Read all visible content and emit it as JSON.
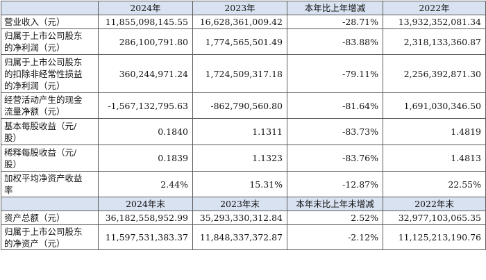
{
  "header1": [
    "",
    "2024年",
    "2023年",
    "本年比上年增减",
    "2022年"
  ],
  "rows1": [
    {
      "label": [
        "营业收入（元）"
      ],
      "values": [
        "11,855,098,145.55",
        "16,628,361,009.42",
        "-28.71%",
        "13,932,352,081.34"
      ]
    },
    {
      "label": [
        "归属于上市公司股东",
        "的净利润（元）"
      ],
      "values": [
        "286,100,791.80",
        "1,774,565,501.49",
        "-83.88%",
        "2,318,133,360.87"
      ]
    },
    {
      "label": [
        "归属于上市公司股东",
        "的扣除非经常性损益",
        "的净利润（元）"
      ],
      "values": [
        "360,244,971.24",
        "1,724,509,317.18",
        "-79.11%",
        "2,256,392,871.30"
      ]
    },
    {
      "label": [
        "经营活动产生的现金",
        "流量净额（元）"
      ],
      "values": [
        "-1,567,132,795.63",
        "-862,790,560.80",
        "-81.64%",
        "1,691,030,346.50"
      ]
    },
    {
      "label": [
        "基本每股收益（元/",
        "股）"
      ],
      "values": [
        "0.1840",
        "1.1311",
        "-83.73%",
        "1.4819"
      ]
    },
    {
      "label": [
        "稀释每股收益（元/",
        "股）"
      ],
      "values": [
        "0.1839",
        "1.1323",
        "-83.76%",
        "1.4813"
      ]
    },
    {
      "label": [
        "加权平均净资产收益",
        "率"
      ],
      "values": [
        "2.44%",
        "15.31%",
        "-12.87%",
        "22.55%"
      ]
    }
  ],
  "header2": [
    "",
    "2024年末",
    "2023年末",
    "本年末比上年末增减",
    "2022年末"
  ],
  "rows2": [
    {
      "label": [
        "资产总额（元）"
      ],
      "values": [
        "36,182,558,952.99",
        "35,293,330,312.84",
        "2.52%",
        "32,977,103,065.35"
      ]
    },
    {
      "label": [
        "归属于上市公司股东",
        "的净资产（元）"
      ],
      "values": [
        "11,597,531,383.37",
        "11,848,337,372.87",
        "-2.12%",
        "11,125,213,190.76"
      ]
    }
  ]
}
